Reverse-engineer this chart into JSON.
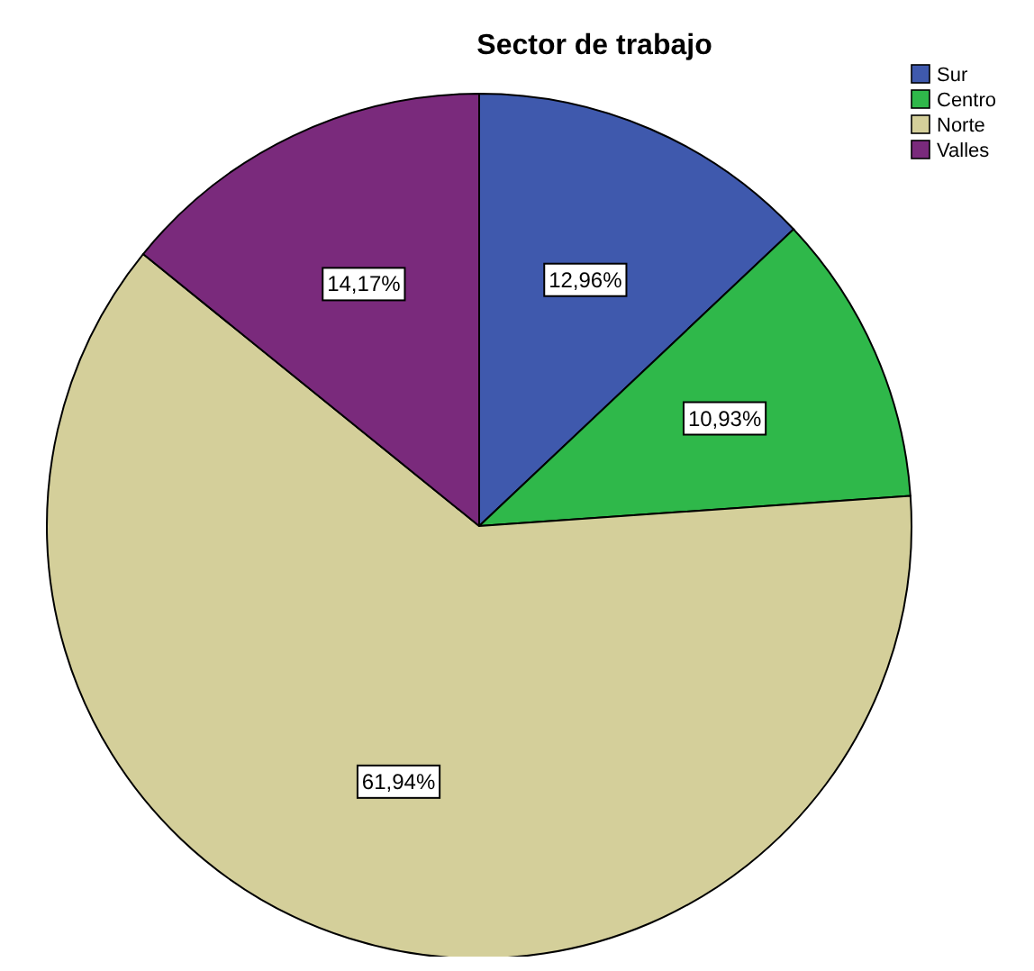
{
  "chart_data": {
    "type": "pie",
    "title": "Sector de trabajo",
    "categories": [
      "Sur",
      "Centro",
      "Norte",
      "Valles"
    ],
    "values": [
      12.96,
      10.93,
      61.94,
      14.17
    ],
    "colors": [
      "#3f59ad",
      "#2fb84a",
      "#d4cf9a",
      "#7a2a7c"
    ],
    "value_labels": [
      "12,96%",
      "10,93%",
      "61,94%",
      "14,17%"
    ],
    "legend": "top right"
  }
}
